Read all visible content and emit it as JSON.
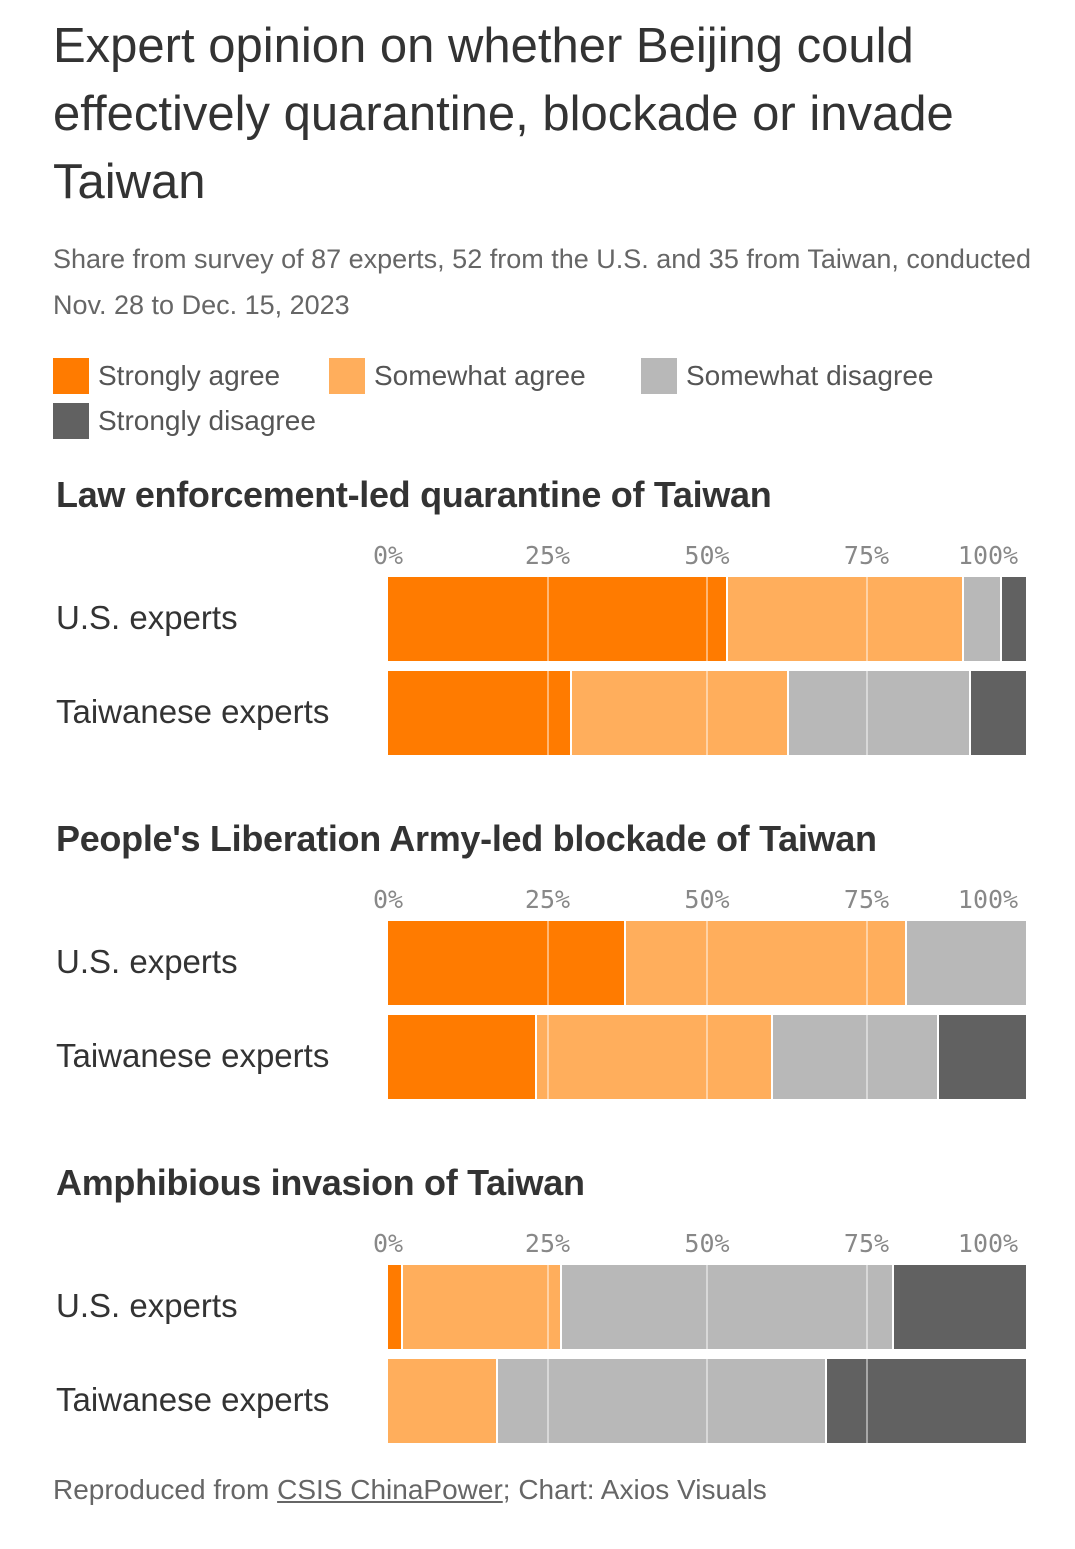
{
  "title": "Expert opinion on whether Beijing could effectively quarantine, blockade or invade Taiwan",
  "subtitle": "Share from survey of 87 experts, 52 from the U.S. and 35 from Taiwan, conducted Nov. 28 to Dec. 15, 2023",
  "legend": [
    {
      "label": "Strongly agree",
      "color": "#ff7b00"
    },
    {
      "label": "Somewhat agree",
      "color": "#ffae5c"
    },
    {
      "label": "Somewhat disagree",
      "color": "#b8b8b8"
    },
    {
      "label": "Strongly disagree",
      "color": "#616161"
    }
  ],
  "footer": {
    "prefix": "Reproduced from ",
    "link_text": "CSIS ChinaPower",
    "suffix": "; Chart: Axios Visuals"
  },
  "chart_data": [
    {
      "type": "bar",
      "stacked": true,
      "orientation": "horizontal",
      "title": "Law enforcement-led quarantine of Taiwan",
      "ticks": [
        "0%",
        "25%",
        "50%",
        "75%",
        "100%"
      ],
      "xlim": [
        0,
        100
      ],
      "categories": [
        "U.S. experts",
        "Taiwanese experts"
      ],
      "series": [
        {
          "name": "Strongly agree",
          "values": [
            53,
            28.5
          ]
        },
        {
          "name": "Somewhat agree",
          "values": [
            37,
            34
          ]
        },
        {
          "name": "Somewhat disagree",
          "values": [
            6,
            28.5
          ]
        },
        {
          "name": "Strongly disagree",
          "values": [
            4,
            9
          ]
        }
      ]
    },
    {
      "type": "bar",
      "stacked": true,
      "orientation": "horizontal",
      "title": "People's Liberation Army-led blockade of Taiwan",
      "ticks": [
        "0%",
        "25%",
        "50%",
        "75%",
        "100%"
      ],
      "xlim": [
        0,
        100
      ],
      "categories": [
        "U.S. experts",
        "Taiwanese experts"
      ],
      "series": [
        {
          "name": "Strongly agree",
          "values": [
            37,
            23
          ]
        },
        {
          "name": "Somewhat agree",
          "values": [
            44,
            37
          ]
        },
        {
          "name": "Somewhat disagree",
          "values": [
            19,
            26
          ]
        },
        {
          "name": "Strongly disagree",
          "values": [
            0,
            14
          ]
        }
      ]
    },
    {
      "type": "bar",
      "stacked": true,
      "orientation": "horizontal",
      "title": "Amphibious invasion of Taiwan",
      "ticks": [
        "0%",
        "25%",
        "50%",
        "75%",
        "100%"
      ],
      "xlim": [
        0,
        100
      ],
      "categories": [
        "U.S. experts",
        "Taiwanese experts"
      ],
      "series": [
        {
          "name": "Strongly agree",
          "values": [
            2,
            0
          ]
        },
        {
          "name": "Somewhat agree",
          "values": [
            25,
            17
          ]
        },
        {
          "name": "Somewhat disagree",
          "values": [
            52,
            51.5
          ]
        },
        {
          "name": "Strongly disagree",
          "values": [
            21,
            31.5
          ]
        }
      ]
    }
  ]
}
